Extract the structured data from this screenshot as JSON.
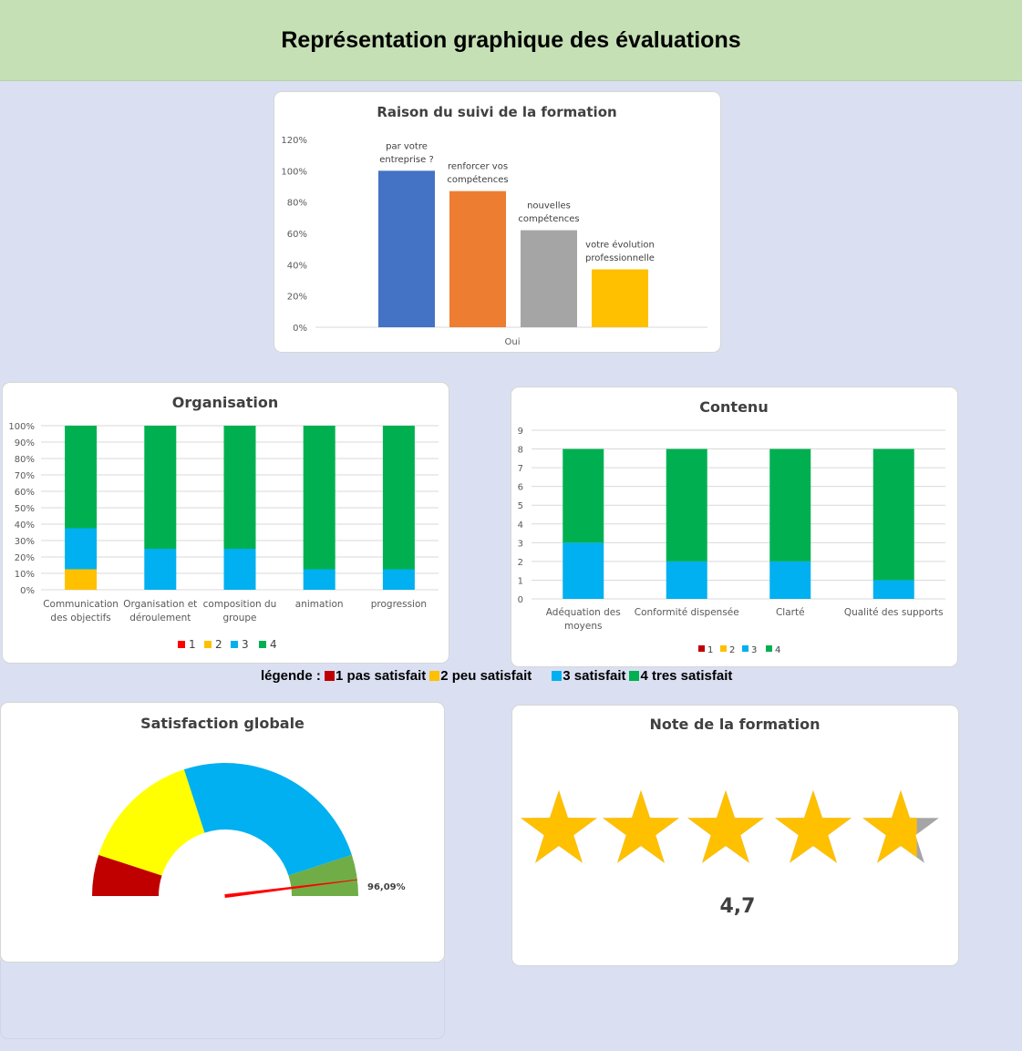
{
  "page": {
    "title": "Représentation graphique des évaluations"
  },
  "colors": {
    "blue": "#4472c4",
    "orange": "#ed7d31",
    "gray": "#a5a5a5",
    "gold": "#ffc000",
    "red": "#ff0000",
    "darkred": "#c00000",
    "cyan": "#00b0f0",
    "green": "#00b050",
    "yellow": "#ffff00",
    "lightgreen": "#70ad47",
    "starGray": "#a5a5a5"
  },
  "legend": {
    "prefix": "légende : ",
    "items": [
      {
        "label": "1 pas satisfait",
        "color": "#c00000"
      },
      {
        "label": "2 peu satisfait",
        "color": "#ffc000"
      },
      {
        "label": "3 satisfait",
        "color": "#00b0f0"
      },
      {
        "label": "4 tres satisfait",
        "color": "#00b050"
      }
    ]
  },
  "chart_data": [
    {
      "id": "raison",
      "type": "bar",
      "title": "Raison du suivi de la formation",
      "categories": [
        "Oui"
      ],
      "ylim": [
        0,
        1.2
      ],
      "yticks": [
        "0%",
        "20%",
        "40%",
        "60%",
        "80%",
        "100%",
        "120%"
      ],
      "series": [
        {
          "name": "par votre entreprise ?",
          "values": [
            1.0
          ],
          "color": "#4472c4"
        },
        {
          "name": "renforcer vos compétences",
          "values": [
            0.87
          ],
          "color": "#ed7d31"
        },
        {
          "name": "nouvelles compétences",
          "values": [
            0.62
          ],
          "color": "#a5a5a5"
        },
        {
          "name": "votre évolution professionnelle",
          "values": [
            0.37
          ],
          "color": "#ffc000"
        }
      ],
      "data_labels": [
        [
          "par votre",
          "entreprise ?"
        ],
        [
          "renforcer vos",
          "compétences"
        ],
        [
          "nouvelles",
          "compétences"
        ],
        [
          "votre évolution",
          "professionnelle"
        ]
      ]
    },
    {
      "id": "organisation",
      "type": "bar",
      "stacked": "percent",
      "title": "Organisation",
      "categories": [
        [
          "Communication",
          "des objectifs"
        ],
        [
          "Organisation et",
          "déroulement"
        ],
        [
          "composition du",
          "groupe"
        ],
        [
          "animation"
        ],
        [
          "progression"
        ]
      ],
      "ylim": [
        0,
        1
      ],
      "yticks": [
        "0%",
        "10%",
        "20%",
        "30%",
        "40%",
        "50%",
        "60%",
        "70%",
        "80%",
        "90%",
        "100%"
      ],
      "series": [
        {
          "name": "1",
          "values": [
            0,
            0,
            0,
            0,
            0
          ],
          "color": "#ff0000"
        },
        {
          "name": "2",
          "values": [
            1,
            0,
            0,
            0,
            0
          ],
          "color": "#ffc000"
        },
        {
          "name": "3",
          "values": [
            2,
            2,
            2,
            1,
            1
          ],
          "color": "#00b0f0"
        },
        {
          "name": "4",
          "values": [
            5,
            6,
            6,
            7,
            7
          ],
          "color": "#00b050"
        }
      ],
      "legend": [
        "1",
        "2",
        "3",
        "4"
      ]
    },
    {
      "id": "contenu",
      "type": "bar",
      "stacked": true,
      "title": "Contenu",
      "categories": [
        [
          "Adéquation des",
          "moyens"
        ],
        [
          "Conformité dispensée"
        ],
        [
          "Clarté"
        ],
        [
          "Qualité des supports"
        ]
      ],
      "ylim": [
        0,
        9
      ],
      "yticks": [
        "0",
        "1",
        "2",
        "3",
        "4",
        "5",
        "6",
        "7",
        "8",
        "9"
      ],
      "series": [
        {
          "name": "1",
          "values": [
            0,
            0,
            0,
            0
          ],
          "color": "#c00000"
        },
        {
          "name": "2",
          "values": [
            0,
            0,
            0,
            0
          ],
          "color": "#ffc000"
        },
        {
          "name": "3",
          "values": [
            3,
            2,
            2,
            1
          ],
          "color": "#00b0f0"
        },
        {
          "name": "4",
          "values": [
            5,
            6,
            6,
            7
          ],
          "color": "#00b050"
        }
      ],
      "legend": [
        "1",
        "2",
        "3",
        "4"
      ]
    },
    {
      "id": "satisfaction",
      "type": "pie",
      "subtype": "gauge",
      "title": "Satisfaction globale",
      "segments": [
        {
          "value": 0.1,
          "color": "#c00000"
        },
        {
          "value": 0.3,
          "color": "#ffff00"
        },
        {
          "value": 0.5,
          "color": "#00b0f0"
        },
        {
          "value": 0.1,
          "color": "#70ad47"
        }
      ],
      "needle": 0.9609,
      "needle_label": "96,09%"
    },
    {
      "id": "note",
      "type": "rating",
      "title": "Note de la formation",
      "value": 4.7,
      "max": 5,
      "value_label": "4,7"
    }
  ]
}
